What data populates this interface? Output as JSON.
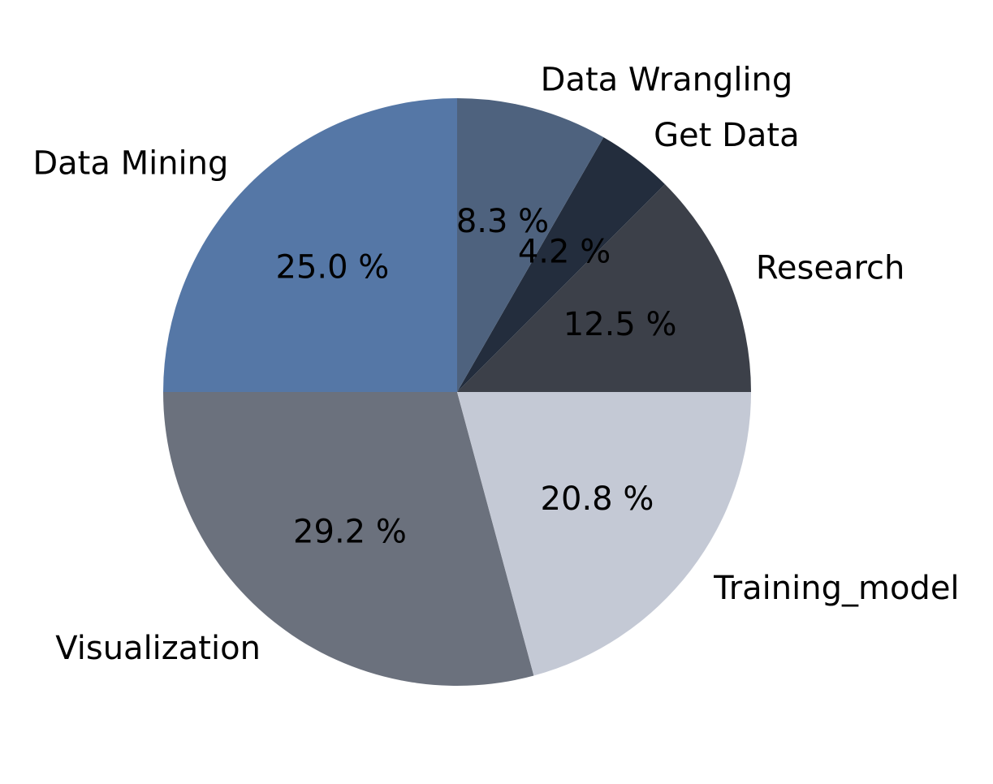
{
  "chart_data": {
    "type": "pie",
    "start_angle_deg": 90,
    "direction": "counterclockwise",
    "slices": [
      {
        "label": "Data Mining",
        "value": 25.0,
        "pct_label": "25.0 %",
        "color": "#5577a6"
      },
      {
        "label": "Visualization",
        "value": 29.2,
        "pct_label": "29.2 %",
        "color": "#6b717d"
      },
      {
        "label": "Training_model",
        "value": 20.8,
        "pct_label": "20.8 %",
        "color": "#c4c9d5"
      },
      {
        "label": "Research",
        "value": 12.5,
        "pct_label": "12.5 %",
        "color": "#3c4049"
      },
      {
        "label": "Get Data",
        "value": 4.2,
        "pct_label": "4.2 %",
        "color": "#232d3d"
      },
      {
        "label": "Data Wrangling",
        "value": 8.3,
        "pct_label": "8.3 %",
        "color": "#4e627e"
      }
    ]
  }
}
